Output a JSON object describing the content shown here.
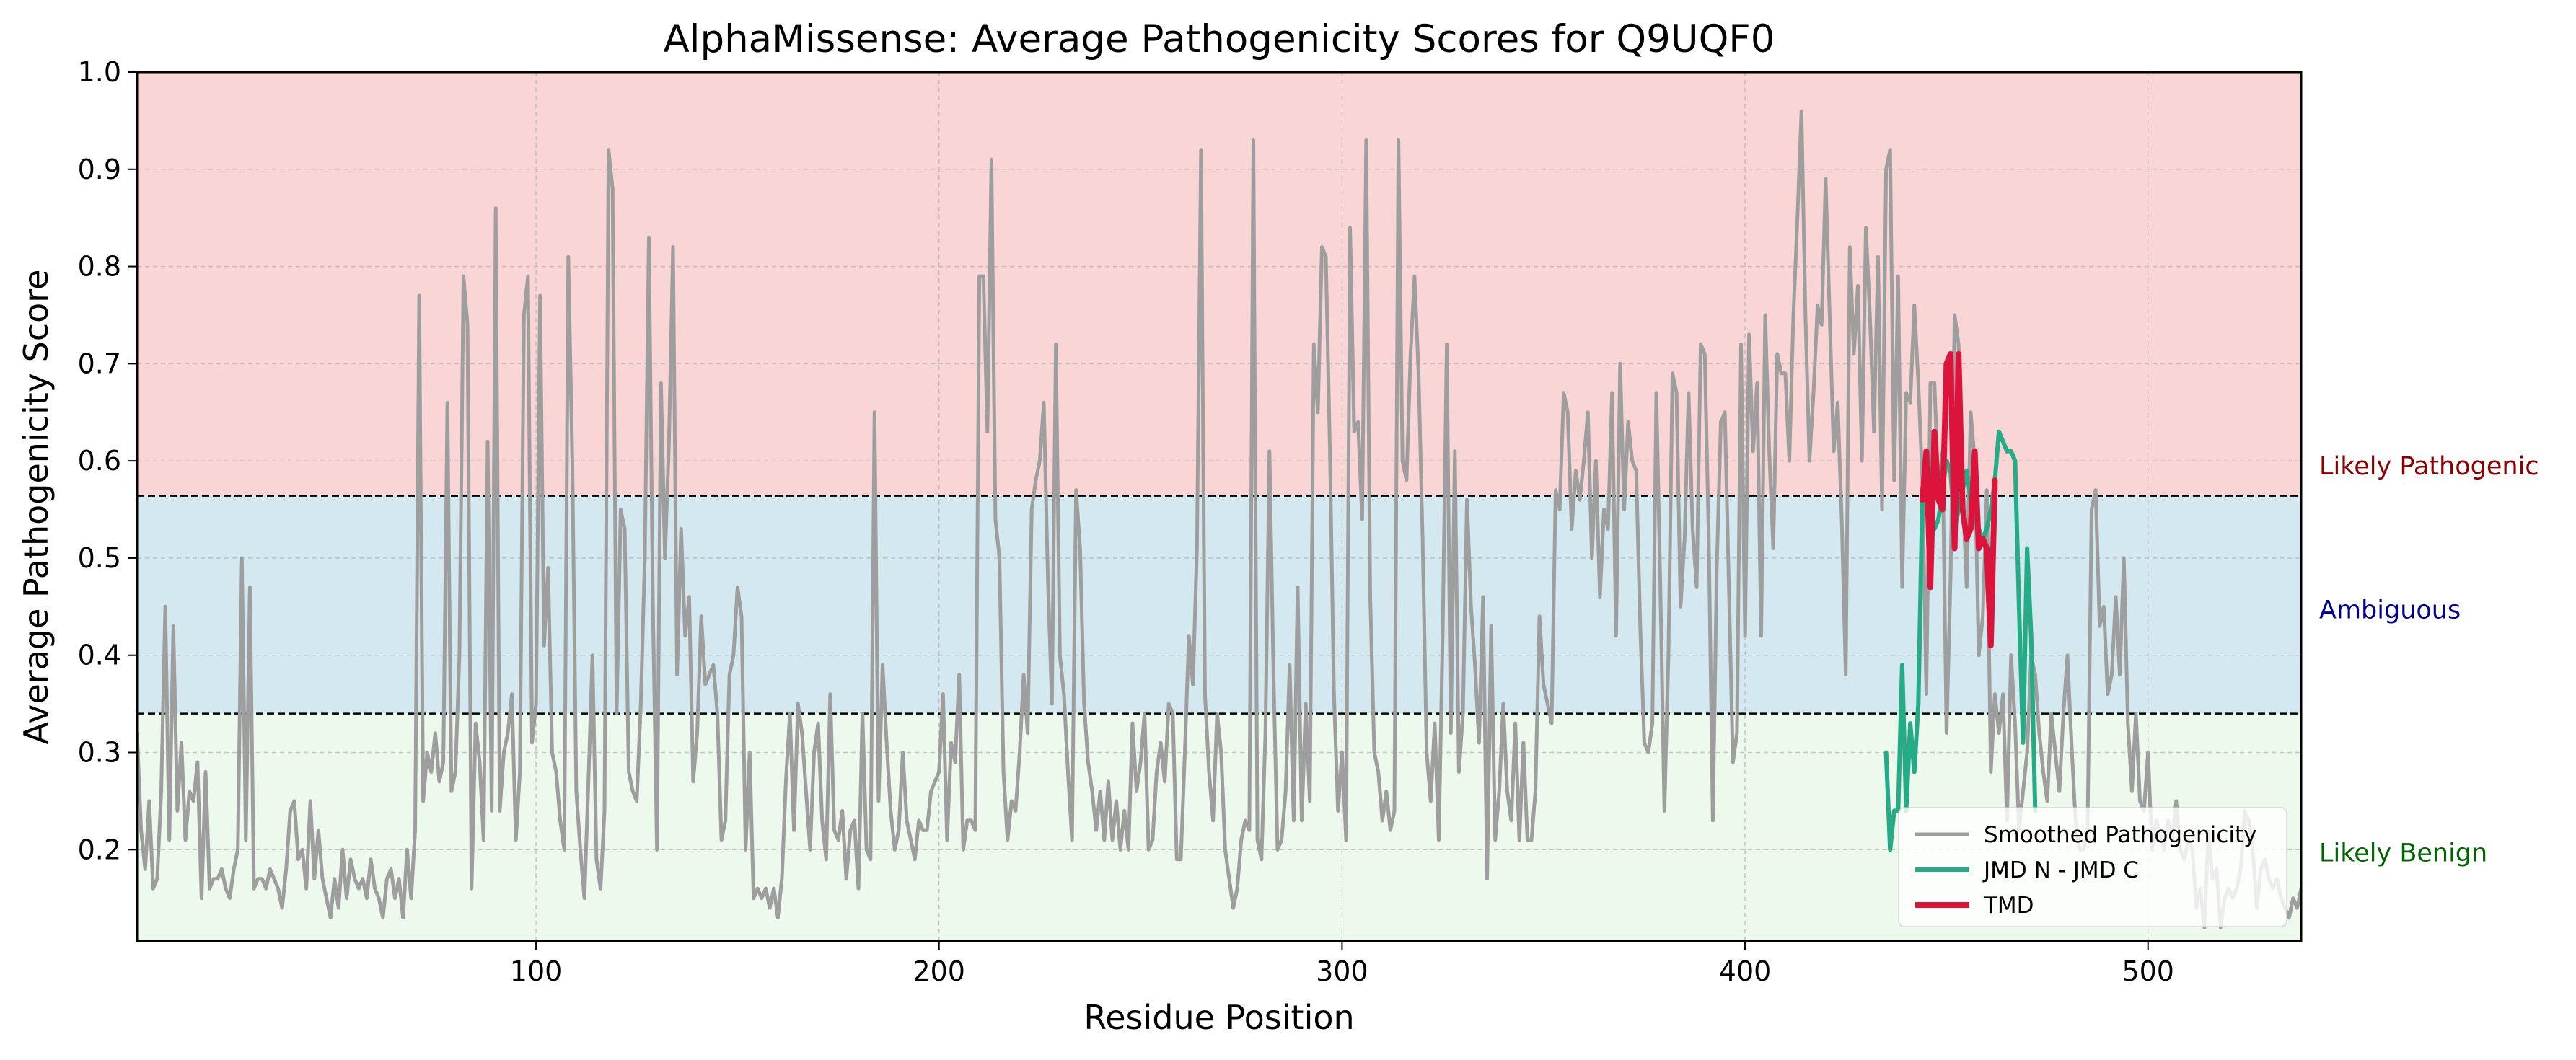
{
  "chart_data": {
    "type": "line",
    "title": "AlphaMissense: Average Pathogenicity Scores for Q9UQF0",
    "xlabel": "Residue Position",
    "ylabel": "Average Pathogenicity Score",
    "xlim": [
      1,
      538
    ],
    "ylim": [
      0.106,
      1.0
    ],
    "xticks": [
      100,
      200,
      300,
      400,
      500
    ],
    "yticks": [
      0.2,
      0.3,
      0.4,
      0.5,
      0.6,
      0.7,
      0.8,
      0.9,
      1.0
    ],
    "grid": true,
    "legend_position": "lower-right",
    "thresholds": [
      0.34,
      0.564
    ],
    "bands": [
      {
        "label": "Likely Pathogenic",
        "from": 0.564,
        "to": 1.0,
        "fill": "#f9d6d5",
        "text_color": "#8b0000"
      },
      {
        "label": "Ambiguous",
        "from": 0.34,
        "to": 0.564,
        "fill": "#d4e9ef",
        "text_color": "#00008b"
      },
      {
        "label": "Likely Benign",
        "from": 0.106,
        "to": 0.34,
        "fill": "#edf9ec",
        "text_color": "#006400"
      }
    ],
    "series": [
      {
        "name": "Smoothed Pathogenicity",
        "color": "#9e9e9e",
        "x_start": 1,
        "y": [
          0.32,
          0.22,
          0.18,
          0.25,
          0.16,
          0.17,
          0.26,
          0.45,
          0.21,
          0.43,
          0.24,
          0.31,
          0.21,
          0.26,
          0.25,
          0.29,
          0.15,
          0.28,
          0.16,
          0.17,
          0.17,
          0.18,
          0.16,
          0.15,
          0.18,
          0.2,
          0.5,
          0.21,
          0.47,
          0.16,
          0.17,
          0.17,
          0.16,
          0.18,
          0.17,
          0.16,
          0.14,
          0.18,
          0.24,
          0.25,
          0.19,
          0.2,
          0.16,
          0.25,
          0.17,
          0.22,
          0.17,
          0.15,
          0.13,
          0.17,
          0.14,
          0.2,
          0.15,
          0.19,
          0.17,
          0.16,
          0.17,
          0.15,
          0.19,
          0.16,
          0.15,
          0.13,
          0.17,
          0.18,
          0.15,
          0.17,
          0.13,
          0.2,
          0.15,
          0.22,
          0.77,
          0.25,
          0.3,
          0.28,
          0.32,
          0.27,
          0.29,
          0.66,
          0.26,
          0.28,
          0.4,
          0.79,
          0.74,
          0.16,
          0.33,
          0.29,
          0.21,
          0.62,
          0.24,
          0.86,
          0.24,
          0.3,
          0.32,
          0.36,
          0.21,
          0.28,
          0.75,
          0.79,
          0.31,
          0.35,
          0.77,
          0.41,
          0.49,
          0.3,
          0.28,
          0.23,
          0.2,
          0.81,
          0.6,
          0.26,
          0.2,
          0.15,
          0.27,
          0.4,
          0.19,
          0.16,
          0.24,
          0.92,
          0.88,
          0.34,
          0.55,
          0.53,
          0.28,
          0.26,
          0.25,
          0.35,
          0.5,
          0.83,
          0.45,
          0.2,
          0.68,
          0.5,
          0.62,
          0.82,
          0.38,
          0.53,
          0.42,
          0.46,
          0.27,
          0.32,
          0.44,
          0.37,
          0.38,
          0.39,
          0.34,
          0.21,
          0.23,
          0.38,
          0.4,
          0.47,
          0.44,
          0.2,
          0.3,
          0.15,
          0.16,
          0.15,
          0.16,
          0.14,
          0.16,
          0.13,
          0.17,
          0.27,
          0.34,
          0.22,
          0.35,
          0.32,
          0.26,
          0.2,
          0.3,
          0.33,
          0.23,
          0.19,
          0.36,
          0.22,
          0.21,
          0.24,
          0.17,
          0.22,
          0.23,
          0.16,
          0.34,
          0.2,
          0.19,
          0.65,
          0.25,
          0.39,
          0.31,
          0.24,
          0.2,
          0.22,
          0.3,
          0.23,
          0.21,
          0.19,
          0.23,
          0.22,
          0.22,
          0.26,
          0.27,
          0.28,
          0.36,
          0.21,
          0.31,
          0.29,
          0.38,
          0.2,
          0.23,
          0.23,
          0.22,
          0.79,
          0.79,
          0.63,
          0.91,
          0.54,
          0.5,
          0.28,
          0.21,
          0.25,
          0.24,
          0.3,
          0.38,
          0.32,
          0.55,
          0.58,
          0.6,
          0.66,
          0.48,
          0.35,
          0.72,
          0.4,
          0.36,
          0.28,
          0.21,
          0.57,
          0.51,
          0.35,
          0.29,
          0.26,
          0.22,
          0.26,
          0.21,
          0.27,
          0.21,
          0.25,
          0.2,
          0.24,
          0.2,
          0.33,
          0.26,
          0.29,
          0.34,
          0.2,
          0.21,
          0.28,
          0.31,
          0.27,
          0.35,
          0.34,
          0.19,
          0.19,
          0.3,
          0.42,
          0.37,
          0.51,
          0.92,
          0.36,
          0.28,
          0.23,
          0.34,
          0.3,
          0.2,
          0.17,
          0.14,
          0.16,
          0.21,
          0.23,
          0.22,
          0.93,
          0.21,
          0.19,
          0.32,
          0.61,
          0.38,
          0.2,
          0.21,
          0.26,
          0.39,
          0.23,
          0.47,
          0.23,
          0.35,
          0.25,
          0.72,
          0.65,
          0.82,
          0.81,
          0.61,
          0.36,
          0.24,
          0.3,
          0.21,
          0.84,
          0.63,
          0.64,
          0.54,
          0.93,
          0.46,
          0.3,
          0.28,
          0.23,
          0.26,
          0.22,
          0.24,
          0.93,
          0.6,
          0.58,
          0.71,
          0.79,
          0.69,
          0.52,
          0.3,
          0.25,
          0.33,
          0.21,
          0.43,
          0.72,
          0.32,
          0.61,
          0.28,
          0.34,
          0.56,
          0.45,
          0.39,
          0.31,
          0.46,
          0.17,
          0.43,
          0.21,
          0.26,
          0.35,
          0.26,
          0.23,
          0.33,
          0.21,
          0.31,
          0.21,
          0.21,
          0.26,
          0.44,
          0.37,
          0.35,
          0.33,
          0.57,
          0.55,
          0.67,
          0.65,
          0.53,
          0.59,
          0.56,
          0.6,
          0.65,
          0.5,
          0.6,
          0.46,
          0.55,
          0.53,
          0.67,
          0.42,
          0.7,
          0.55,
          0.64,
          0.6,
          0.59,
          0.43,
          0.31,
          0.3,
          0.33,
          0.67,
          0.47,
          0.24,
          0.4,
          0.69,
          0.67,
          0.45,
          0.52,
          0.67,
          0.53,
          0.47,
          0.72,
          0.71,
          0.52,
          0.23,
          0.49,
          0.64,
          0.65,
          0.47,
          0.29,
          0.32,
          0.72,
          0.42,
          0.73,
          0.61,
          0.68,
          0.42,
          0.75,
          0.61,
          0.51,
          0.71,
          0.69,
          0.69,
          0.6,
          0.75,
          0.85,
          0.96,
          0.75,
          0.6,
          0.67,
          0.76,
          0.74,
          0.89,
          0.75,
          0.61,
          0.66,
          0.54,
          0.38,
          0.82,
          0.71,
          0.78,
          0.6,
          0.84,
          0.75,
          0.63,
          0.81,
          0.55,
          0.9,
          0.92,
          0.58,
          0.79,
          0.47,
          0.67,
          0.66,
          0.76,
          0.68,
          0.58,
          0.36,
          0.68,
          0.68,
          0.57,
          0.61,
          0.32,
          0.48,
          0.75,
          0.72,
          0.57,
          0.47,
          0.65,
          0.6,
          0.4,
          0.44,
          0.57,
          0.28,
          0.36,
          0.32,
          0.36,
          0.23,
          0.4,
          0.33,
          0.22,
          0.26,
          0.3,
          0.4,
          0.38,
          0.32,
          0.28,
          0.25,
          0.34,
          0.3,
          0.26,
          0.34,
          0.4,
          0.31,
          0.23,
          0.2,
          0.2,
          0.22,
          0.55,
          0.57,
          0.43,
          0.45,
          0.36,
          0.38,
          0.46,
          0.38,
          0.5,
          0.33,
          0.26,
          0.34,
          0.25,
          0.24,
          0.3,
          0.2,
          0.23,
          0.22,
          0.2,
          0.23,
          0.21,
          0.25,
          0.2,
          0.19,
          0.21,
          0.2,
          0.14,
          0.16,
          0.12,
          0.22,
          0.17,
          0.18,
          0.12,
          0.15,
          0.16,
          0.15,
          0.16,
          0.18,
          0.24,
          0.23,
          0.2,
          0.14,
          0.18,
          0.19,
          0.17,
          0.16,
          0.17,
          0.15,
          0.14,
          0.13,
          0.15,
          0.14,
          0.16,
          0.17,
          0.14,
          0.16,
          0.18,
          0.16,
          0.15,
          0.14,
          0.17,
          0.13,
          0.14
        ]
      },
      {
        "name": "JMD N - JMD C",
        "color": "#26ab87",
        "x_start": 435,
        "y": [
          0.3,
          0.2,
          0.24,
          0.24,
          0.39,
          0.24,
          0.33,
          0.28,
          0.35,
          0.56,
          0.59,
          0.55,
          0.53,
          0.54,
          0.57,
          0.6,
          0.59,
          0.53,
          0.55,
          0.57,
          0.59,
          0.56,
          0.54,
          0.53,
          0.52,
          0.53,
          0.55,
          0.58,
          0.63,
          0.62,
          0.61,
          0.61,
          0.6,
          0.45,
          0.31,
          0.51,
          0.42,
          0.24
        ]
      },
      {
        "name": "TMD",
        "color": "#dc143c",
        "x_start": 444,
        "y": [
          0.56,
          0.61,
          0.47,
          0.63,
          0.56,
          0.55,
          0.7,
          0.71,
          0.51,
          0.71,
          0.55,
          0.52,
          0.53,
          0.61,
          0.51,
          0.52,
          0.51,
          0.41,
          0.58
        ]
      }
    ]
  }
}
